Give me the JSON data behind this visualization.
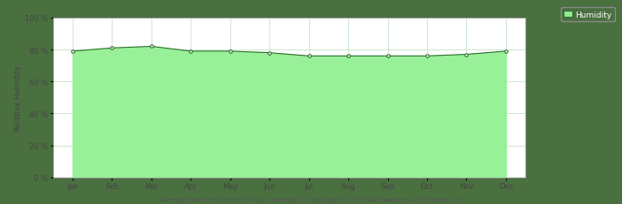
{
  "months": [
    "Jan",
    "Feb",
    "Mar",
    "Apr",
    "May",
    "Jun",
    "Jul",
    "Aug",
    "Sep",
    "Oct",
    "Nov",
    "Dec"
  ],
  "humidity": [
    79,
    81,
    82,
    79,
    79,
    78,
    76,
    76,
    76,
    76,
    77,
    79
  ],
  "ylim": [
    0,
    100
  ],
  "yticks": [
    0,
    20,
    40,
    60,
    80,
    100
  ],
  "ytick_labels": [
    "0 %",
    "20 %",
    "40 %",
    "60 %",
    "80 %",
    "100 %"
  ],
  "ylabel": "Relative Humidity",
  "line_color": "#2d6e2d",
  "fill_color": "#98f098",
  "marker_color": "#2d6e2d",
  "bg_outer": "#4a7040",
  "bg_inner": "#ffffff",
  "grid_color": "#bbddbb",
  "legend_label": "Humidity",
  "legend_fill_color": "#90EE90",
  "legend_edge_color": "#336633",
  "footer_text": "Average relative humidity in Praya, Indonesia   Copyright © 2016 www.weather-and-climate.com",
  "tick_fontsize": 6,
  "ylabel_fontsize": 6,
  "legend_fontsize": 6.5
}
